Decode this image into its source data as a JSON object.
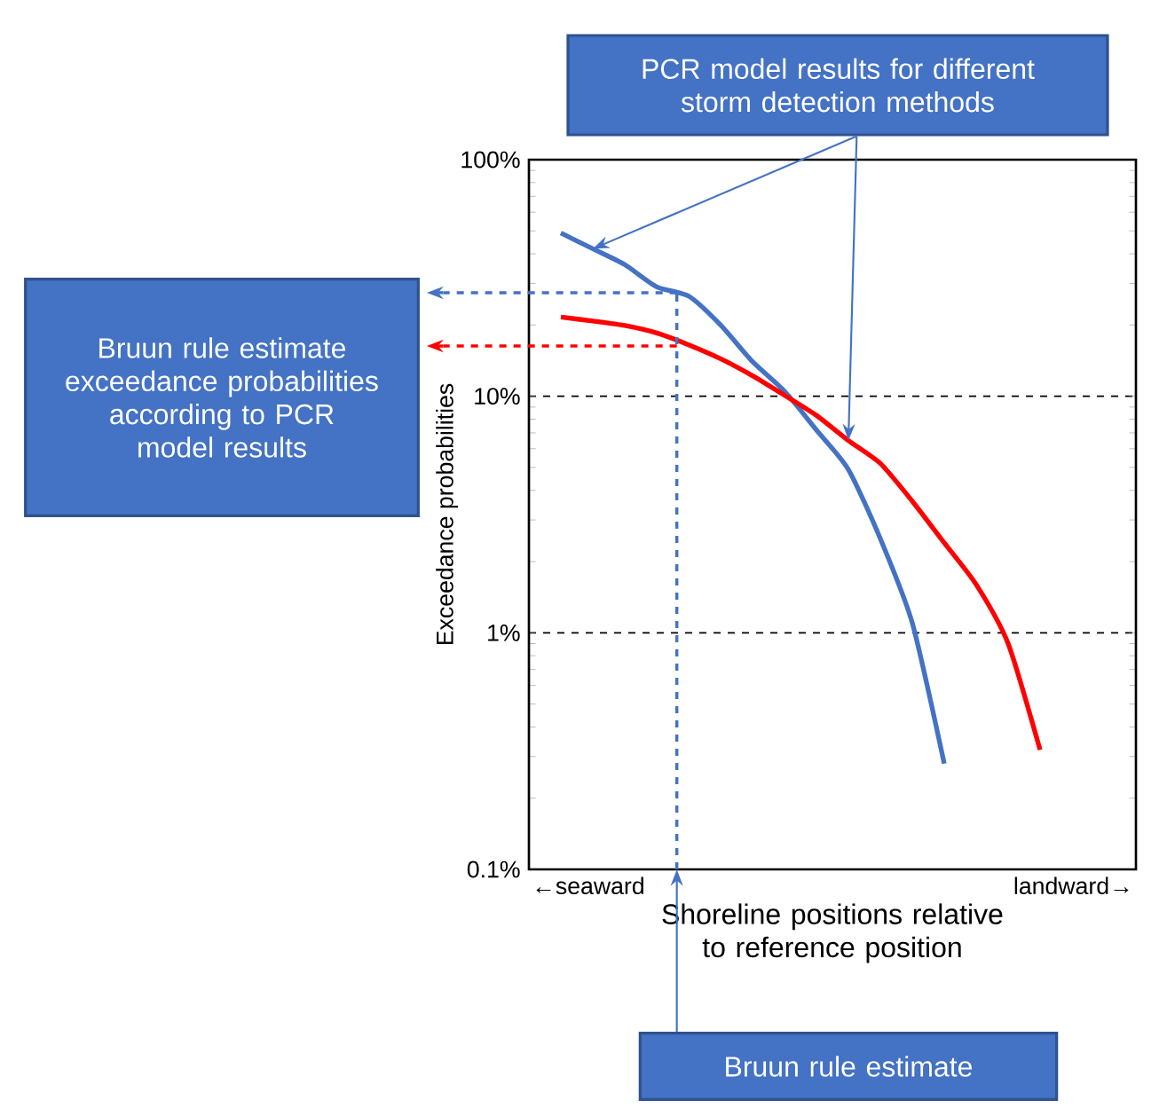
{
  "chart_data": {
    "type": "line",
    "ylabel": "Exceedance probabilities",
    "xlabel": "Shoreline positions relative to reference position",
    "log": "y",
    "ylim": [
      0.1,
      100
    ],
    "yticks": [
      {
        "value": 0.1,
        "label": "0.1%"
      },
      {
        "value": 1,
        "label": "1%"
      },
      {
        "value": 10,
        "label": "10%"
      },
      {
        "value": 100,
        "label": "100%"
      }
    ],
    "categories": [
      null,
      null,
      null,
      null,
      null,
      null,
      null,
      null,
      null,
      null,
      null,
      null,
      null,
      null,
      null,
      null,
      null,
      null,
      null,
      null
    ],
    "grid": "y",
    "marker": "none",
    "line_style": "solid",
    "series": [
      {
        "color": "#4472c4",
        "values": [
          null,
          49,
          42,
          36,
          29,
          26.5,
          20,
          14,
          10.5,
          7.2,
          4.9,
          2.5,
          1.1,
          0.28,
          null,
          null,
          null,
          null,
          null,
          null
        ]
      },
      {
        "color": "#ff0000",
        "values": [
          null,
          21.6,
          20.8,
          19.9,
          18.5,
          16.5,
          14.4,
          12.2,
          10.1,
          8.3,
          6.5,
          5.2,
          3.6,
          2.4,
          1.6,
          0.9,
          0.32,
          null,
          null,
          null
        ]
      }
    ],
    "ref_lines": [
      {
        "axis": "y",
        "value": 27.4,
        "color": "#4472c4",
        "line_style": "dashed"
      },
      {
        "axis": "y",
        "value": 16.3,
        "color": "#ff0000",
        "line_style": "dashed"
      }
    ],
    "annotations": [
      "PCR model results for different storm detection methods",
      "Bruun rule estimate exceedance probabilities according to PCR model results",
      "Bruun rule estimate",
      "←seaward",
      "landward→"
    ]
  }
}
